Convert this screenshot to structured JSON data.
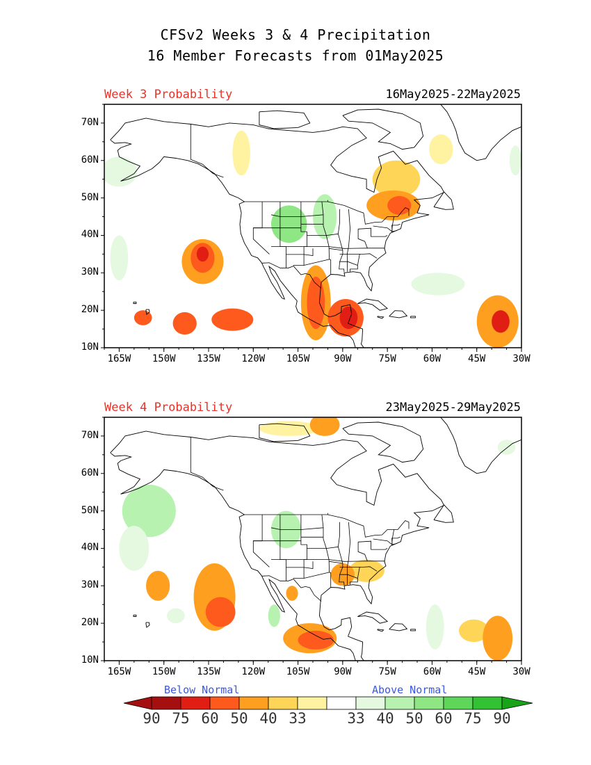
{
  "title": {
    "line1": "CFSv2 Weeks 3 & 4 Precipitation",
    "line2": "16 Member Forecasts from 01May2025"
  },
  "lat_labels": [
    "70N",
    "60N",
    "50N",
    "40N",
    "30N",
    "20N",
    "10N"
  ],
  "lon_labels": [
    "165W",
    "150W",
    "135W",
    "120W",
    "105W",
    "90W",
    "75W",
    "60W",
    "45W",
    "30W"
  ],
  "panels": [
    {
      "label": "Week 3 Probability",
      "dates": "16May2025-22May2025",
      "blobs": [
        {
          "cat": "below",
          "level": 3,
          "lon": -137,
          "lat": 33,
          "rx": 7,
          "ry": 6
        },
        {
          "cat": "below",
          "level": 2,
          "lon": -137,
          "lat": 34,
          "rx": 4,
          "ry": 4
        },
        {
          "cat": "below",
          "level": 1,
          "lon": -137,
          "lat": 35,
          "rx": 2,
          "ry": 2
        },
        {
          "cat": "below",
          "level": 2,
          "lon": -127,
          "lat": 17.5,
          "rx": 7,
          "ry": 3
        },
        {
          "cat": "below",
          "level": 2,
          "lon": -143,
          "lat": 16.5,
          "rx": 4,
          "ry": 3
        },
        {
          "cat": "below",
          "level": 2,
          "lon": -157,
          "lat": 18,
          "rx": 3,
          "ry": 2
        },
        {
          "cat": "below",
          "level": 3,
          "lon": -99,
          "lat": 22,
          "rx": 5,
          "ry": 10
        },
        {
          "cat": "below",
          "level": 2,
          "lon": -99,
          "lat": 22,
          "rx": 3,
          "ry": 7
        },
        {
          "cat": "below",
          "level": 2,
          "lon": -89,
          "lat": 18,
          "rx": 6,
          "ry": 5
        },
        {
          "cat": "below",
          "level": 1,
          "lon": -88,
          "lat": 18,
          "rx": 3,
          "ry": 3
        },
        {
          "cat": "below",
          "level": 3,
          "lon": -73,
          "lat": 48,
          "rx": 9,
          "ry": 4
        },
        {
          "cat": "below",
          "level": 2,
          "lon": -71,
          "lat": 48,
          "rx": 4,
          "ry": 2.5
        },
        {
          "cat": "below",
          "level": 4,
          "lon": -72,
          "lat": 55,
          "rx": 8,
          "ry": 5
        },
        {
          "cat": "below",
          "level": 3,
          "lon": -38,
          "lat": 17,
          "rx": 7,
          "ry": 7
        },
        {
          "cat": "below",
          "level": 1,
          "lon": -37,
          "lat": 17,
          "rx": 3,
          "ry": 3
        },
        {
          "cat": "below",
          "level": 5,
          "lon": -57,
          "lat": 63,
          "rx": 4,
          "ry": 4
        },
        {
          "cat": "below",
          "level": 5,
          "lon": -124,
          "lat": 62,
          "rx": 3,
          "ry": 6
        },
        {
          "cat": "above",
          "level": 3,
          "lon": -108,
          "lat": 43,
          "rx": 6,
          "ry": 5
        },
        {
          "cat": "above",
          "level": 4,
          "lon": -96,
          "lat": 45,
          "rx": 4,
          "ry": 6
        },
        {
          "cat": "above",
          "level": 5,
          "lon": -165,
          "lat": 57,
          "rx": 6,
          "ry": 4
        },
        {
          "cat": "above",
          "level": 5,
          "lon": -165,
          "lat": 34,
          "rx": 3,
          "ry": 6
        },
        {
          "cat": "above",
          "level": 5,
          "lon": -58,
          "lat": 27,
          "rx": 9,
          "ry": 3
        },
        {
          "cat": "above",
          "level": 5,
          "lon": -32,
          "lat": 60,
          "rx": 2,
          "ry": 4
        }
      ]
    },
    {
      "label": "Week 4 Probability",
      "dates": "23May2025-29May2025",
      "blobs": [
        {
          "cat": "below",
          "level": 3,
          "lon": -133,
          "lat": 27,
          "rx": 7,
          "ry": 9
        },
        {
          "cat": "below",
          "level": 2,
          "lon": -131,
          "lat": 23,
          "rx": 5,
          "ry": 4
        },
        {
          "cat": "below",
          "level": 3,
          "lon": -152,
          "lat": 30,
          "rx": 4,
          "ry": 4
        },
        {
          "cat": "below",
          "level": 3,
          "lon": -101,
          "lat": 16,
          "rx": 9,
          "ry": 4
        },
        {
          "cat": "below",
          "level": 2,
          "lon": -99,
          "lat": 15.5,
          "rx": 6,
          "ry": 2.5
        },
        {
          "cat": "below",
          "level": 3,
          "lon": -90,
          "lat": 33,
          "rx": 4,
          "ry": 3
        },
        {
          "cat": "below",
          "level": 4,
          "lon": -82,
          "lat": 34,
          "rx": 6,
          "ry": 3
        },
        {
          "cat": "below",
          "level": 3,
          "lon": -107,
          "lat": 28,
          "rx": 2,
          "ry": 2
        },
        {
          "cat": "below",
          "level": 3,
          "lon": -38,
          "lat": 16,
          "rx": 5,
          "ry": 6
        },
        {
          "cat": "below",
          "level": 4,
          "lon": -46,
          "lat": 18,
          "rx": 5,
          "ry": 3
        },
        {
          "cat": "below",
          "level": 3,
          "lon": -96,
          "lat": 73,
          "rx": 5,
          "ry": 3
        },
        {
          "cat": "below",
          "level": 5,
          "lon": -108,
          "lat": 72,
          "rx": 10,
          "ry": 2
        }
      ],
      "blobs_above": [
        {
          "cat": "above",
          "level": 4,
          "lon": -155,
          "lat": 50,
          "rx": 9,
          "ry": 7
        },
        {
          "cat": "above",
          "level": 5,
          "lon": -160,
          "lat": 40,
          "rx": 5,
          "ry": 6
        },
        {
          "cat": "above",
          "level": 4,
          "lon": -109,
          "lat": 45,
          "rx": 5,
          "ry": 5
        },
        {
          "cat": "above",
          "level": 4,
          "lon": -113,
          "lat": 22,
          "rx": 2,
          "ry": 3
        },
        {
          "cat": "above",
          "level": 5,
          "lon": -59,
          "lat": 19,
          "rx": 3,
          "ry": 6
        },
        {
          "cat": "above",
          "level": 5,
          "lon": -35,
          "lat": 67,
          "rx": 3,
          "ry": 2
        },
        {
          "cat": "above",
          "level": 5,
          "lon": -146,
          "lat": 22,
          "rx": 3,
          "ry": 2
        }
      ]
    }
  ],
  "legend": {
    "below_label": "Below Normal",
    "above_label": "Above Normal",
    "numbers": [
      "90",
      "75",
      "60",
      "50",
      "40",
      "33",
      "33",
      "40",
      "50",
      "60",
      "75",
      "90"
    ],
    "below_colors": [
      "#a50f0f",
      "#e01e14",
      "#ff5a1e",
      "#ff9f20",
      "#ffd558",
      "#fff3a2"
    ],
    "white": "#ffffff",
    "above_colors": [
      "#e4f9e0",
      "#b8f2b0",
      "#8ee684",
      "#5ed65a",
      "#34c235"
    ],
    "arrow_below": "#a50f0f",
    "arrow_above": "#18a418"
  }
}
